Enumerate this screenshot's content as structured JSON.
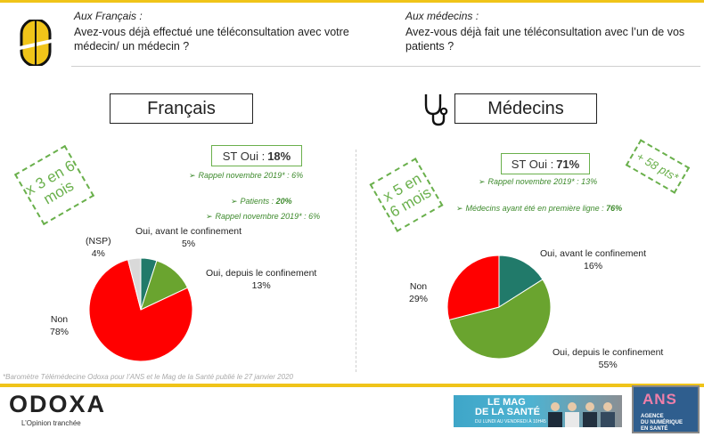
{
  "header": {
    "left_who": "Aux Français :",
    "left_question": "Avez-vous déjà effectué une téléconsultation avec votre médecin/ un médecin ?",
    "right_who": "Aux médecins :",
    "right_question": "Avez-vous déjà fait une téléconsultation avec l’un de vos patients ?"
  },
  "panels": {
    "francais": {
      "title": "Français",
      "stamp": "x 3 en 6 mois",
      "st_label": "ST Oui :",
      "st_value": "18%",
      "notes": [
        {
          "text": "Rappel novembre 2019* : 6%",
          "bold": ""
        },
        {
          "text": "Patients : ",
          "bold": "20%"
        },
        {
          "text": "Rappel novembre 2019* : 6%",
          "bold": ""
        }
      ],
      "labels": {
        "nsp": "(NSP)",
        "nsp_v": "4%",
        "avant": "Oui, avant le confinement",
        "avant_v": "5%",
        "depuis": "Oui, depuis le confinement",
        "depuis_v": "13%",
        "non": "Non",
        "non_v": "78%"
      }
    },
    "medecins": {
      "title": "Médecins",
      "stamp": "x 5 en 6 mois",
      "stamp_pts": "+ 58 pts*",
      "st_label": "ST Oui :",
      "st_value": "71%",
      "notes": [
        {
          "text": "Rappel novembre 2019* : 13%",
          "bold": ""
        },
        {
          "text": "Médecins ayant été en première ligne : ",
          "bold": "76%"
        }
      ],
      "labels": {
        "avant": "Oui, avant le confinement",
        "avant_v": "16%",
        "depuis": "Oui, depuis le confinement",
        "depuis_v": "55%",
        "non": "Non",
        "non_v": "29%"
      }
    }
  },
  "chart_data": [
    {
      "type": "pie",
      "title": "Français",
      "slices": [
        {
          "label": "Oui, avant le confinement",
          "value": 5,
          "color": "#217a6a"
        },
        {
          "label": "Oui, depuis le confinement",
          "value": 13,
          "color": "#6aa42f"
        },
        {
          "label": "Non",
          "value": 78,
          "color": "#ff0000"
        },
        {
          "label": "(NSP)",
          "value": 4,
          "color": "#d9d9d9"
        }
      ]
    },
    {
      "type": "pie",
      "title": "Médecins",
      "slices": [
        {
          "label": "Oui, avant le confinement",
          "value": 16,
          "color": "#217a6a"
        },
        {
          "label": "Oui, depuis le confinement",
          "value": 55,
          "color": "#6aa42f"
        },
        {
          "label": "Non",
          "value": 29,
          "color": "#ff0000"
        }
      ]
    }
  ],
  "source": "*Baromètre Télémédecine Odoxa pour l’ANS et le Mag de la Santé publié le 27 janvier 2020",
  "footer": {
    "logo": "ODOXA",
    "tagline": "L’Opinion tranchée",
    "mag_line1": "LE MAG",
    "mag_line2": "DE LA SANTÉ",
    "mag_line3": "DU LUNDI AU VENDREDI À 10H45",
    "ans_mark": "ANS",
    "ans_l1": "AGENCE",
    "ans_l2": "DU NUMÉRIQUE",
    "ans_l3": "EN SANTÉ"
  }
}
